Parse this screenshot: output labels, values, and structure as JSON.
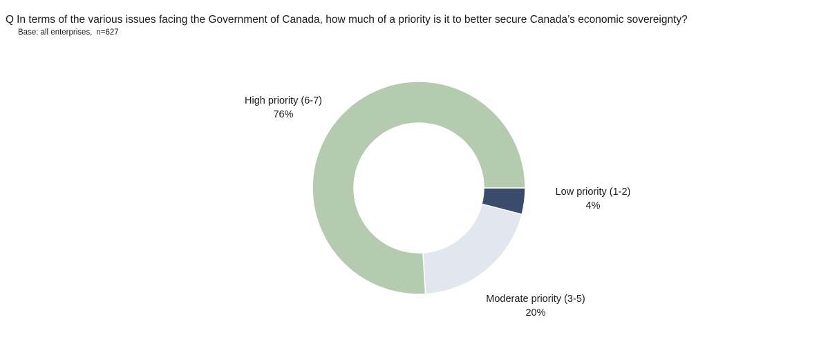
{
  "question": {
    "prefix": "Q",
    "text": "In terms of the various issues facing the Government of Canada, how much of a priority is it to better secure Canada’s economic sovereignty?"
  },
  "base": {
    "text": "Base: all enterprises,",
    "n": "n=627"
  },
  "chart_data": {
    "type": "pie",
    "donut": true,
    "title": "",
    "slices": [
      {
        "label": "Low priority (1-2)",
        "value": 4,
        "value_label": "4%",
        "color": "#3a4b6b"
      },
      {
        "label": "Moderate priority (3-5)",
        "value": 20,
        "value_label": "20%",
        "color": "#e2e6ee"
      },
      {
        "label": "High priority (6-7)",
        "value": 76,
        "value_label": "76%",
        "color": "#b5cbb0"
      }
    ],
    "start_angle_deg": 90,
    "direction": "clockwise",
    "legend": "none",
    "labels": "outside"
  }
}
